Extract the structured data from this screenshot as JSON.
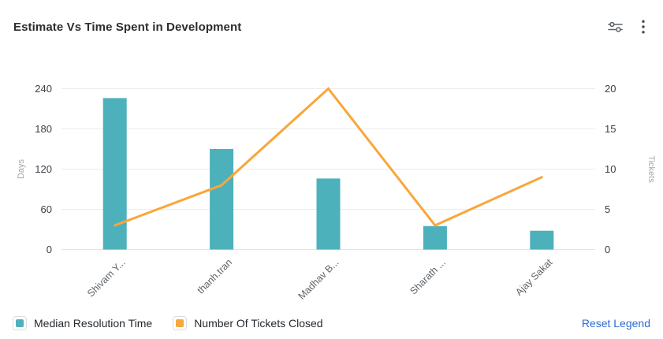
{
  "header": {
    "title": "Estimate Vs Time Spent in Development"
  },
  "chart_data": {
    "type": "bar",
    "subtype": "combo-bar-line-dual-axis",
    "title": "Estimate Vs Time Spent in Development",
    "categories": [
      "Shivam Y...",
      "thanh.tran",
      "Madhav B...",
      "Sharath ...",
      "Ajay Sakat"
    ],
    "series": [
      {
        "name": "Median Resolution Time",
        "type": "bar",
        "axis": "left",
        "values": [
          226,
          150,
          106,
          35,
          28
        ],
        "color": "#4db1bc"
      },
      {
        "name": "Number Of Tickets Closed",
        "type": "line",
        "axis": "right",
        "values": [
          3,
          8,
          20,
          3,
          9
        ],
        "color": "#f9a63a"
      }
    ],
    "left_axis": {
      "label": "Days",
      "min": 0,
      "max": 240,
      "ticks": [
        0,
        60,
        120,
        180,
        240
      ]
    },
    "right_axis": {
      "label": "Tickets",
      "min": 0,
      "max": 20,
      "ticks": [
        0,
        5,
        10,
        15,
        20
      ]
    },
    "grid": true,
    "legend_position": "bottom-left",
    "x_label_rotation": -45
  },
  "legend": {
    "items": [
      {
        "label": "Median Resolution Time",
        "color": "#4db1bc"
      },
      {
        "label": "Number Of Tickets Closed",
        "color": "#f9a63a"
      }
    ],
    "reset_label": "Reset Legend",
    "reset_color": "#2b6cd4"
  },
  "colors": {
    "bar": "#4db1bc",
    "line": "#f9a63a",
    "gridline": "#ececec",
    "axis_line": "#e3e3e3",
    "icon": "#5f6368"
  }
}
